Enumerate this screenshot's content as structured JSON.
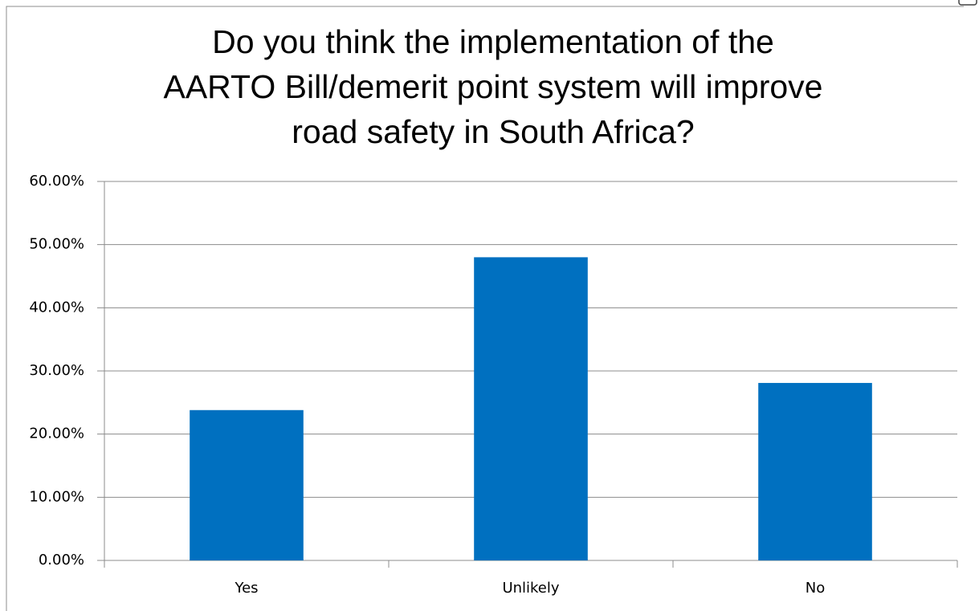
{
  "chart_data": {
    "type": "bar",
    "title": "Do you think the implementation of the AARTO Bill/demerit point system will improve road safety in South Africa?",
    "categories": [
      "Yes",
      "Unlikely",
      "No"
    ],
    "values": [
      23.8,
      48.0,
      28.1
    ],
    "color": "#0070c0",
    "ylim": [
      0,
      60
    ],
    "yticks": [
      {
        "value": 0,
        "label": "0.00%"
      },
      {
        "value": 10,
        "label": "10.00%"
      },
      {
        "value": 20,
        "label": "20.00%"
      },
      {
        "value": 30,
        "label": "30.00%"
      },
      {
        "value": 40,
        "label": "40.00%"
      },
      {
        "value": 50,
        "label": "50.00%"
      },
      {
        "value": 60,
        "label": "60.00%"
      }
    ],
    "grid": true
  }
}
